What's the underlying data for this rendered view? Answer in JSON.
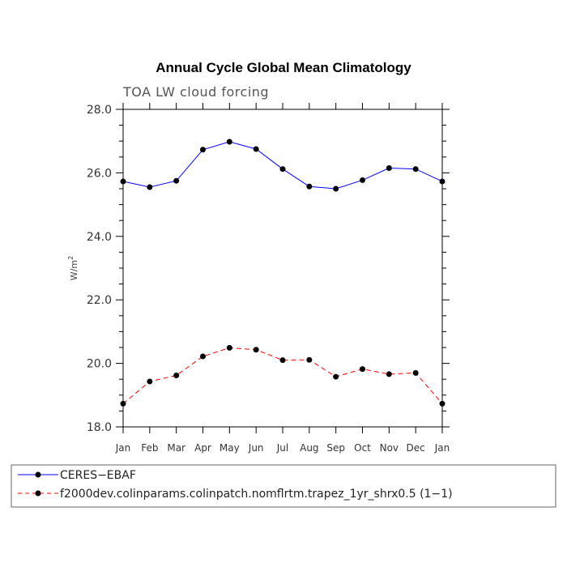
{
  "chart_data": {
    "type": "line",
    "title": "Annual Cycle Global Mean Climatology",
    "subtitle": "TOA LW cloud forcing",
    "ylabel": "W/m",
    "ylabel_sup": "2",
    "ylim": [
      18.0,
      28.0
    ],
    "yticks": [
      18.0,
      20.0,
      22.0,
      24.0,
      26.0,
      28.0
    ],
    "ytick_labels": [
      "18.0",
      "20.0",
      "22.0",
      "24.0",
      "26.0",
      "28.0"
    ],
    "categories": [
      "Jan",
      "Feb",
      "Mar",
      "Apr",
      "May",
      "Jun",
      "Jul",
      "Aug",
      "Sep",
      "Oct",
      "Nov",
      "Dec",
      "Jan"
    ],
    "series": [
      {
        "name": "CERES−EBAF",
        "color": "#0000ff",
        "dash": "solid",
        "values": [
          25.73,
          25.55,
          25.75,
          26.73,
          26.98,
          26.75,
          26.12,
          25.57,
          25.5,
          25.77,
          26.15,
          26.12,
          25.73
        ]
      },
      {
        "name": "f2000dev.colinparams.colinpatch.nomflrtm.trapez_1yr_shrx0.5 (1−1)",
        "color": "#ff0000",
        "dash": "dashed",
        "values": [
          18.73,
          19.43,
          19.62,
          20.22,
          20.49,
          20.43,
          20.1,
          20.11,
          19.58,
          19.82,
          19.66,
          19.7,
          18.73
        ]
      }
    ]
  }
}
